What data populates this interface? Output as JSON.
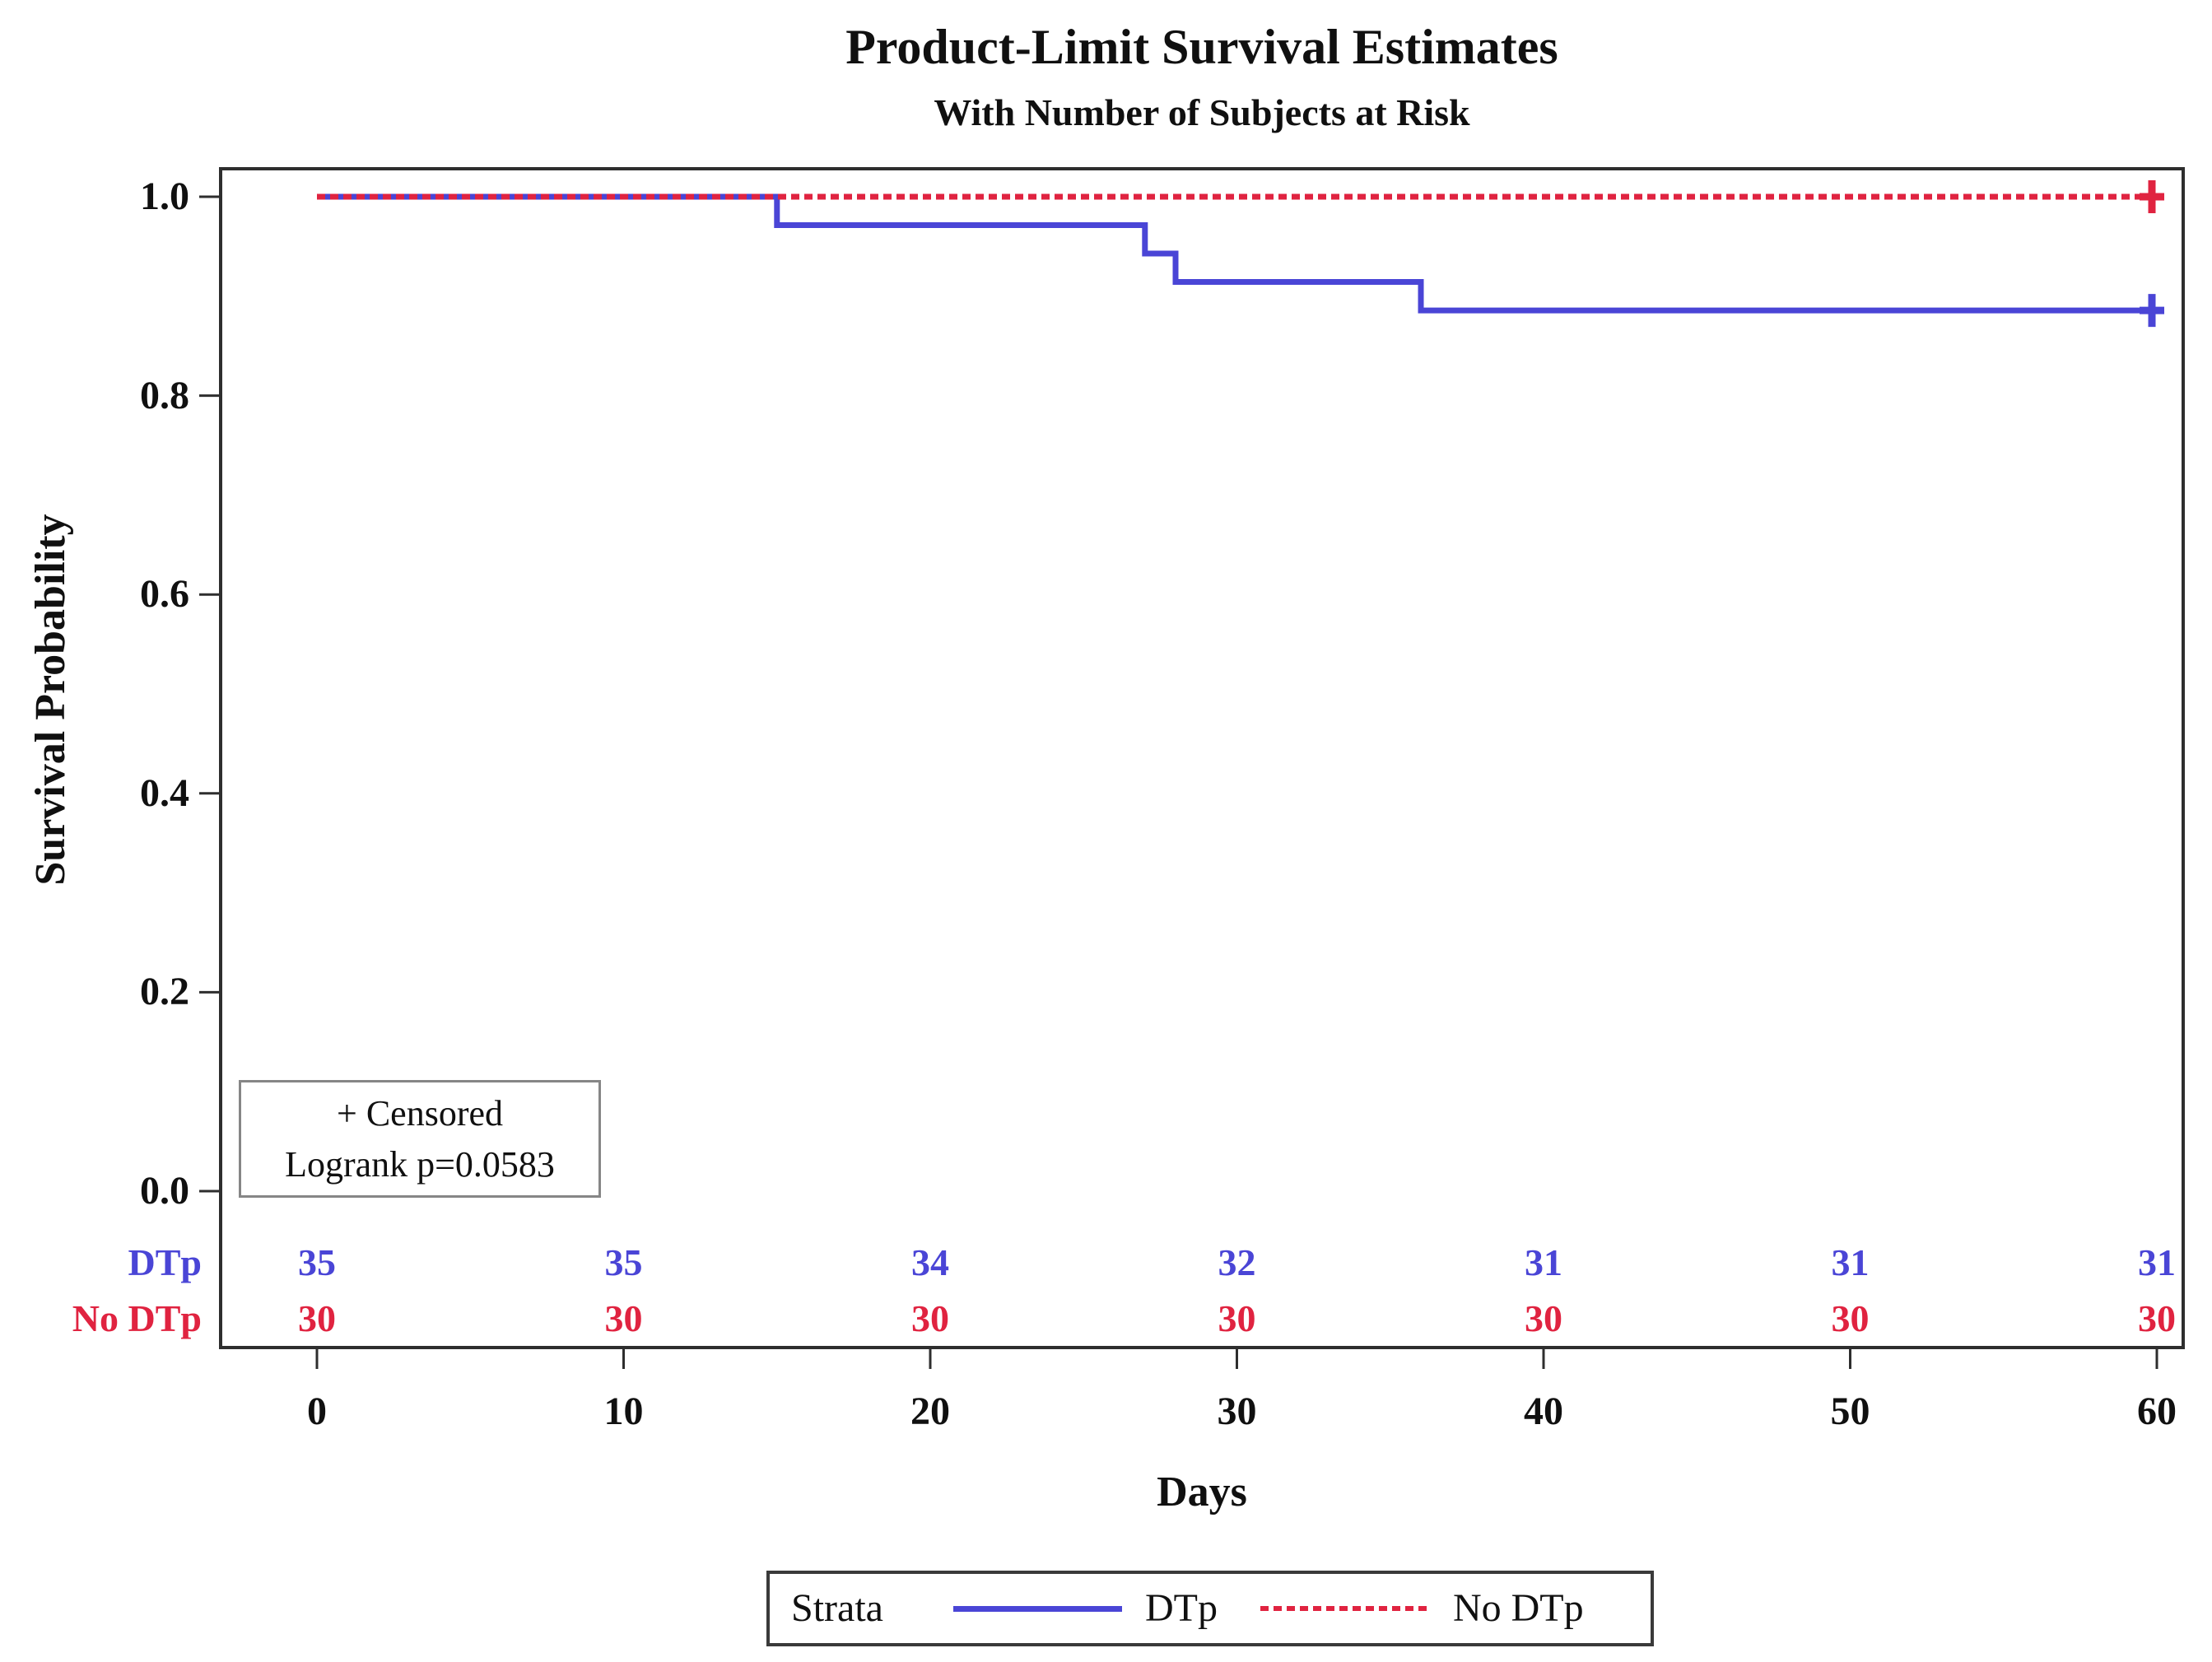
{
  "chart_data": {
    "type": "line",
    "subtype": "kaplan-meier-survival-step",
    "title": "Product-Limit Survival Estimates",
    "subtitle": "With Number of Subjects at Risk",
    "xlabel": "Days",
    "ylabel": "Survival Probability",
    "xlim": [
      0,
      60
    ],
    "ylim": [
      0.0,
      1.0
    ],
    "grid": false,
    "xticks": {
      "values": [
        0,
        10,
        20,
        30,
        40,
        50,
        60
      ],
      "labels": [
        "0",
        "10",
        "20",
        "30",
        "40",
        "50",
        "60"
      ]
    },
    "yticks": {
      "values": [
        0.0,
        0.2,
        0.4,
        0.6,
        0.8,
        1.0
      ],
      "labels": [
        "0.0",
        "0.2",
        "0.4",
        "0.6",
        "0.8",
        "1.0"
      ]
    },
    "series": [
      {
        "name": "DTp",
        "color": "#4a45d6",
        "line_style": "solid",
        "step_path": [
          [
            0,
            1.0
          ],
          [
            15,
            1.0
          ],
          [
            15,
            0.9714
          ],
          [
            27,
            0.9714
          ],
          [
            27,
            0.9429
          ],
          [
            28,
            0.9429
          ],
          [
            28,
            0.9143
          ],
          [
            36,
            0.9143
          ],
          [
            36,
            0.8857
          ],
          [
            60,
            0.8857
          ]
        ],
        "censored_points": [
          [
            60,
            0.8857
          ]
        ]
      },
      {
        "name": "No DTp",
        "color": "#e02340",
        "line_style": "dashed",
        "step_path": [
          [
            0,
            1.0
          ],
          [
            60,
            1.0
          ]
        ],
        "censored_points": [
          [
            60,
            1.0
          ]
        ]
      }
    ],
    "at_risk_table": {
      "times": [
        0,
        10,
        20,
        30,
        40,
        50,
        60
      ],
      "rows": [
        {
          "label": "DTp",
          "color": "#4a45d6",
          "counts": [
            "35",
            "35",
            "34",
            "32",
            "31",
            "31",
            "31"
          ]
        },
        {
          "label": "No DTp",
          "color": "#e02340",
          "counts": [
            "30",
            "30",
            "30",
            "30",
            "30",
            "30",
            "30"
          ]
        }
      ]
    },
    "annotation_box": {
      "line1": "+ Censored",
      "line2": "Logrank p=0.0583"
    },
    "legend": {
      "title": "Strata",
      "position": "bottom",
      "entries": [
        {
          "label": "DTp",
          "color": "#4a45d6",
          "style": "solid"
        },
        {
          "label": "No DTp",
          "color": "#e02340",
          "style": "dashed"
        }
      ]
    }
  },
  "colors": {
    "axis": "#2e2e2e",
    "text": "#101010",
    "inset_border": "#868686",
    "legend_border": "#3a3a3a"
  }
}
